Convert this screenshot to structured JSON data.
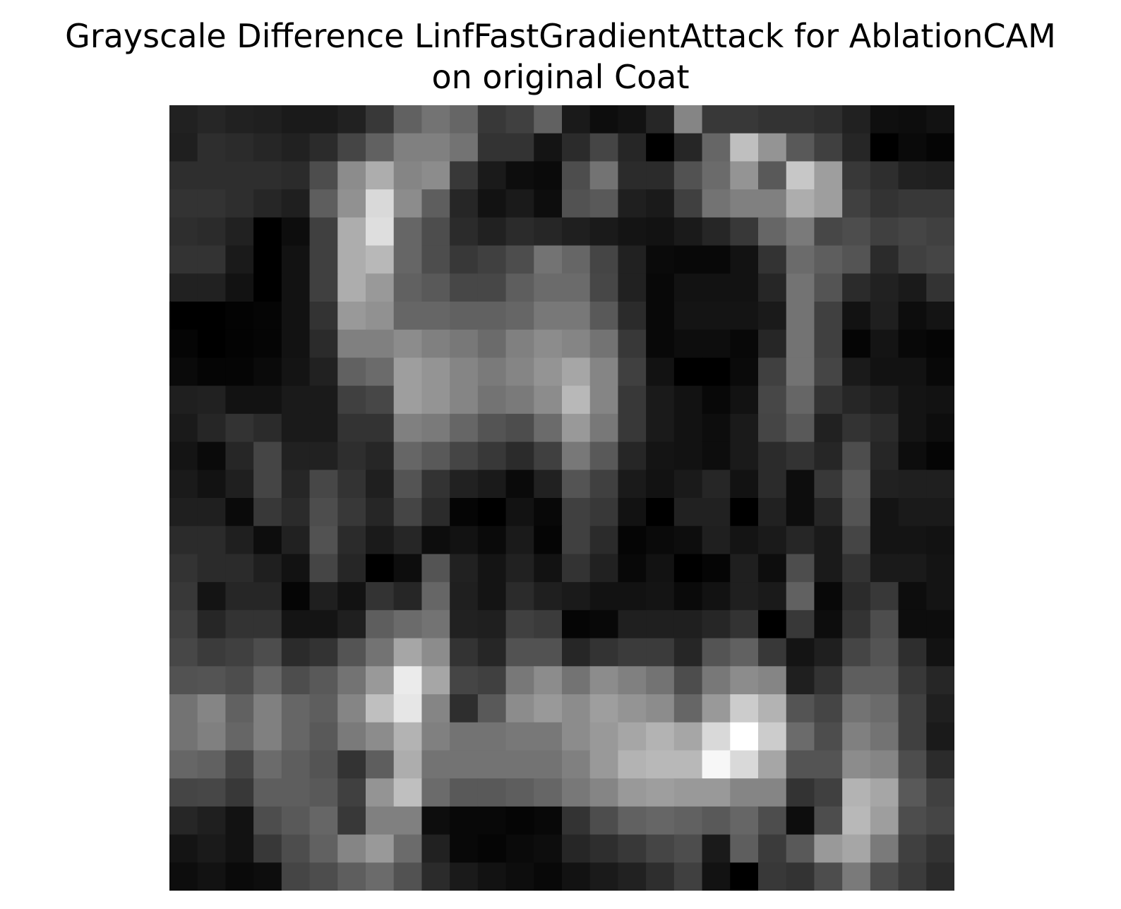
{
  "chart_data": {
    "type": "heatmap",
    "title_lines": [
      "Grayscale Difference LinfFastGradientAttack for AblationCAM",
      "on original Coat"
    ],
    "colormap": "gray",
    "axis": "off",
    "rows": 28,
    "cols": 28,
    "values": [
      [
        0.13,
        0.15,
        0.13,
        0.12,
        0.1,
        0.1,
        0.13,
        0.22,
        0.38,
        0.45,
        0.4,
        0.22,
        0.25,
        0.38,
        0.1,
        0.05,
        0.07,
        0.15,
        0.52,
        0.22,
        0.22,
        0.2,
        0.2,
        0.18,
        0.13,
        0.06,
        0.05,
        0.07
      ],
      [
        0.12,
        0.18,
        0.17,
        0.15,
        0.13,
        0.17,
        0.27,
        0.38,
        0.5,
        0.5,
        0.45,
        0.2,
        0.2,
        0.08,
        0.17,
        0.27,
        0.15,
        0.0,
        0.15,
        0.4,
        0.75,
        0.58,
        0.35,
        0.25,
        0.15,
        0.0,
        0.04,
        0.02
      ],
      [
        0.18,
        0.18,
        0.18,
        0.18,
        0.17,
        0.3,
        0.55,
        0.68,
        0.52,
        0.55,
        0.22,
        0.1,
        0.05,
        0.04,
        0.3,
        0.45,
        0.17,
        0.17,
        0.32,
        0.42,
        0.58,
        0.35,
        0.78,
        0.62,
        0.22,
        0.18,
        0.13,
        0.12
      ],
      [
        0.2,
        0.2,
        0.18,
        0.15,
        0.12,
        0.37,
        0.57,
        0.85,
        0.55,
        0.37,
        0.15,
        0.07,
        0.1,
        0.05,
        0.32,
        0.35,
        0.12,
        0.1,
        0.25,
        0.45,
        0.5,
        0.5,
        0.68,
        0.62,
        0.25,
        0.2,
        0.22,
        0.22
      ],
      [
        0.18,
        0.17,
        0.13,
        0.0,
        0.05,
        0.25,
        0.68,
        0.87,
        0.4,
        0.3,
        0.17,
        0.13,
        0.17,
        0.15,
        0.12,
        0.1,
        0.08,
        0.07,
        0.1,
        0.15,
        0.22,
        0.4,
        0.48,
        0.28,
        0.3,
        0.25,
        0.27,
        0.25
      ],
      [
        0.2,
        0.2,
        0.1,
        0.0,
        0.07,
        0.25,
        0.68,
        0.72,
        0.4,
        0.3,
        0.22,
        0.25,
        0.3,
        0.45,
        0.4,
        0.27,
        0.13,
        0.04,
        0.03,
        0.03,
        0.07,
        0.2,
        0.42,
        0.37,
        0.33,
        0.17,
        0.25,
        0.27
      ],
      [
        0.13,
        0.13,
        0.07,
        0.0,
        0.07,
        0.25,
        0.68,
        0.6,
        0.38,
        0.35,
        0.28,
        0.28,
        0.37,
        0.42,
        0.42,
        0.28,
        0.13,
        0.03,
        0.07,
        0.07,
        0.07,
        0.15,
        0.45,
        0.33,
        0.17,
        0.13,
        0.1,
        0.2
      ],
      [
        0.0,
        0.0,
        0.01,
        0.02,
        0.07,
        0.2,
        0.6,
        0.57,
        0.4,
        0.4,
        0.38,
        0.38,
        0.4,
        0.47,
        0.47,
        0.35,
        0.17,
        0.03,
        0.08,
        0.08,
        0.08,
        0.1,
        0.45,
        0.25,
        0.07,
        0.12,
        0.05,
        0.08
      ],
      [
        0.02,
        0.0,
        0.01,
        0.02,
        0.07,
        0.17,
        0.5,
        0.5,
        0.55,
        0.5,
        0.47,
        0.42,
        0.5,
        0.55,
        0.52,
        0.45,
        0.22,
        0.03,
        0.05,
        0.05,
        0.03,
        0.15,
        0.45,
        0.25,
        0.02,
        0.08,
        0.03,
        0.02
      ],
      [
        0.04,
        0.02,
        0.02,
        0.04,
        0.08,
        0.13,
        0.38,
        0.42,
        0.62,
        0.58,
        0.52,
        0.48,
        0.52,
        0.58,
        0.65,
        0.52,
        0.25,
        0.07,
        0.0,
        0.0,
        0.04,
        0.25,
        0.45,
        0.27,
        0.1,
        0.07,
        0.07,
        0.03
      ],
      [
        0.12,
        0.13,
        0.07,
        0.07,
        0.1,
        0.1,
        0.25,
        0.28,
        0.62,
        0.58,
        0.52,
        0.45,
        0.48,
        0.55,
        0.72,
        0.52,
        0.22,
        0.1,
        0.07,
        0.03,
        0.07,
        0.28,
        0.4,
        0.2,
        0.15,
        0.12,
        0.08,
        0.07
      ],
      [
        0.1,
        0.15,
        0.2,
        0.17,
        0.1,
        0.1,
        0.2,
        0.2,
        0.5,
        0.48,
        0.4,
        0.33,
        0.3,
        0.42,
        0.6,
        0.47,
        0.22,
        0.1,
        0.07,
        0.05,
        0.1,
        0.27,
        0.35,
        0.13,
        0.2,
        0.17,
        0.08,
        0.05
      ],
      [
        0.08,
        0.04,
        0.15,
        0.27,
        0.13,
        0.13,
        0.18,
        0.15,
        0.4,
        0.35,
        0.27,
        0.22,
        0.17,
        0.25,
        0.47,
        0.35,
        0.15,
        0.08,
        0.07,
        0.05,
        0.1,
        0.17,
        0.2,
        0.15,
        0.3,
        0.15,
        0.05,
        0.02
      ],
      [
        0.1,
        0.07,
        0.12,
        0.27,
        0.15,
        0.28,
        0.2,
        0.12,
        0.33,
        0.2,
        0.13,
        0.1,
        0.04,
        0.13,
        0.33,
        0.25,
        0.1,
        0.07,
        0.1,
        0.15,
        0.07,
        0.17,
        0.05,
        0.22,
        0.35,
        0.13,
        0.12,
        0.12
      ],
      [
        0.12,
        0.12,
        0.04,
        0.22,
        0.17,
        0.3,
        0.22,
        0.15,
        0.27,
        0.17,
        0.02,
        0.0,
        0.07,
        0.03,
        0.25,
        0.22,
        0.07,
        0.0,
        0.13,
        0.13,
        0.0,
        0.13,
        0.05,
        0.15,
        0.33,
        0.08,
        0.1,
        0.1
      ],
      [
        0.17,
        0.17,
        0.12,
        0.05,
        0.13,
        0.32,
        0.17,
        0.1,
        0.15,
        0.05,
        0.07,
        0.04,
        0.1,
        0.02,
        0.25,
        0.17,
        0.02,
        0.04,
        0.05,
        0.12,
        0.08,
        0.1,
        0.15,
        0.1,
        0.27,
        0.08,
        0.08,
        0.07
      ],
      [
        0.2,
        0.17,
        0.17,
        0.12,
        0.07,
        0.27,
        0.15,
        0.0,
        0.05,
        0.33,
        0.13,
        0.08,
        0.13,
        0.07,
        0.2,
        0.13,
        0.03,
        0.07,
        0.0,
        0.02,
        0.12,
        0.05,
        0.3,
        0.1,
        0.2,
        0.1,
        0.1,
        0.08
      ],
      [
        0.22,
        0.08,
        0.15,
        0.15,
        0.02,
        0.12,
        0.07,
        0.2,
        0.15,
        0.4,
        0.12,
        0.08,
        0.17,
        0.12,
        0.1,
        0.07,
        0.07,
        0.08,
        0.04,
        0.07,
        0.12,
        0.1,
        0.38,
        0.03,
        0.17,
        0.22,
        0.05,
        0.08
      ],
      [
        0.25,
        0.15,
        0.2,
        0.2,
        0.08,
        0.08,
        0.12,
        0.37,
        0.42,
        0.45,
        0.13,
        0.12,
        0.25,
        0.23,
        0.02,
        0.03,
        0.12,
        0.12,
        0.12,
        0.15,
        0.2,
        0.0,
        0.22,
        0.05,
        0.2,
        0.3,
        0.05,
        0.05
      ],
      [
        0.28,
        0.23,
        0.25,
        0.3,
        0.17,
        0.2,
        0.33,
        0.45,
        0.65,
        0.55,
        0.2,
        0.15,
        0.32,
        0.32,
        0.15,
        0.2,
        0.23,
        0.23,
        0.15,
        0.33,
        0.38,
        0.22,
        0.08,
        0.12,
        0.27,
        0.33,
        0.18,
        0.07
      ],
      [
        0.32,
        0.33,
        0.3,
        0.4,
        0.3,
        0.35,
        0.45,
        0.6,
        0.92,
        0.65,
        0.27,
        0.25,
        0.47,
        0.55,
        0.45,
        0.55,
        0.5,
        0.45,
        0.3,
        0.47,
        0.55,
        0.52,
        0.12,
        0.2,
        0.37,
        0.37,
        0.22,
        0.15
      ],
      [
        0.45,
        0.52,
        0.38,
        0.5,
        0.4,
        0.37,
        0.52,
        0.75,
        0.9,
        0.52,
        0.18,
        0.35,
        0.55,
        0.6,
        0.55,
        0.62,
        0.58,
        0.55,
        0.4,
        0.6,
        0.8,
        0.7,
        0.33,
        0.27,
        0.45,
        0.42,
        0.25,
        0.12
      ],
      [
        0.45,
        0.5,
        0.4,
        0.5,
        0.4,
        0.35,
        0.48,
        0.55,
        0.7,
        0.5,
        0.45,
        0.45,
        0.47,
        0.47,
        0.55,
        0.6,
        0.65,
        0.7,
        0.65,
        0.85,
        1.0,
        0.8,
        0.42,
        0.3,
        0.5,
        0.45,
        0.25,
        0.1
      ],
      [
        0.4,
        0.38,
        0.27,
        0.42,
        0.37,
        0.33,
        0.2,
        0.37,
        0.68,
        0.45,
        0.45,
        0.45,
        0.45,
        0.45,
        0.5,
        0.6,
        0.7,
        0.72,
        0.72,
        0.97,
        0.85,
        0.65,
        0.33,
        0.33,
        0.55,
        0.52,
        0.3,
        0.17
      ],
      [
        0.27,
        0.28,
        0.22,
        0.37,
        0.37,
        0.35,
        0.25,
        0.58,
        0.75,
        0.42,
        0.35,
        0.35,
        0.37,
        0.4,
        0.47,
        0.52,
        0.6,
        0.62,
        0.6,
        0.6,
        0.52,
        0.52,
        0.2,
        0.25,
        0.7,
        0.65,
        0.35,
        0.25
      ],
      [
        0.15,
        0.12,
        0.07,
        0.3,
        0.35,
        0.4,
        0.22,
        0.5,
        0.5,
        0.05,
        0.03,
        0.03,
        0.02,
        0.03,
        0.2,
        0.3,
        0.38,
        0.4,
        0.38,
        0.35,
        0.4,
        0.3,
        0.05,
        0.3,
        0.72,
        0.62,
        0.3,
        0.27
      ],
      [
        0.08,
        0.1,
        0.07,
        0.22,
        0.3,
        0.38,
        0.52,
        0.6,
        0.42,
        0.13,
        0.03,
        0.02,
        0.04,
        0.05,
        0.15,
        0.18,
        0.22,
        0.27,
        0.3,
        0.1,
        0.37,
        0.23,
        0.35,
        0.6,
        0.65,
        0.48,
        0.25,
        0.2
      ],
      [
        0.05,
        0.07,
        0.04,
        0.05,
        0.27,
        0.3,
        0.37,
        0.42,
        0.32,
        0.17,
        0.1,
        0.07,
        0.05,
        0.03,
        0.07,
        0.1,
        0.13,
        0.18,
        0.25,
        0.07,
        0.0,
        0.22,
        0.2,
        0.3,
        0.48,
        0.3,
        0.23,
        0.17
      ]
    ]
  }
}
